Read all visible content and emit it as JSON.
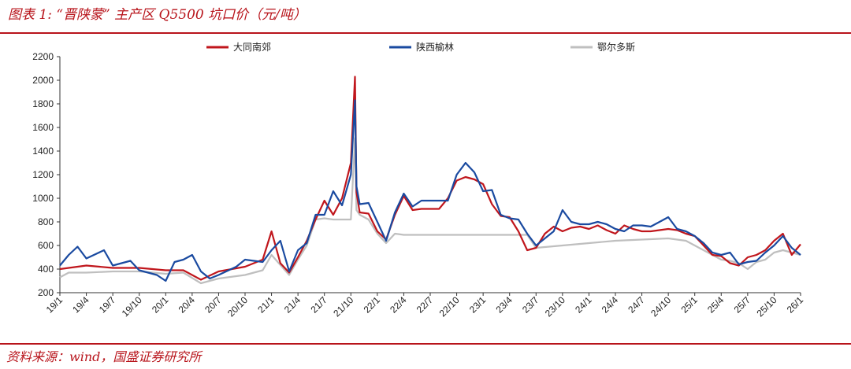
{
  "header": {
    "title": "图表 1: “晋陕蒙” 主产区 Q5500 坑口价（元/吨）"
  },
  "footer": {
    "source": "资料来源：wind，国盛证券研究所"
  },
  "chart_data": {
    "type": "line",
    "title": "“晋陕蒙” 主产区 Q5500 坑口价（元/吨）",
    "xlabel": "",
    "ylabel": "",
    "ylim": [
      200,
      2200
    ],
    "yticks": [
      200,
      400,
      600,
      800,
      1000,
      1200,
      1400,
      1600,
      1800,
      2000,
      2200
    ],
    "xlim": [
      "2019-01",
      "2026-01"
    ],
    "xticks": [
      "19/1",
      "19/4",
      "19/7",
      "19/10",
      "20/1",
      "20/4",
      "20/7",
      "20/10",
      "21/1",
      "21/4",
      "21/7",
      "21/10",
      "22/1",
      "22/4",
      "22/7",
      "22/10",
      "23/1",
      "23/4",
      "23/7",
      "23/10",
      "24/1",
      "24/4",
      "24/7",
      "24/10",
      "25/1",
      "25/4",
      "25/7",
      "25/10",
      "26/1"
    ],
    "grid": false,
    "legend_position": "top",
    "series": [
      {
        "name": "大同南郊",
        "color": "#c0161c",
        "x": [
          "2019-01",
          "2019-04",
          "2019-07",
          "2019-10",
          "2020-01",
          "2020-03",
          "2020-05",
          "2020-07",
          "2020-10",
          "2020-12",
          "2021-01",
          "2021-02",
          "2021-03",
          "2021-04",
          "2021-05",
          "2021-06",
          "2021-07",
          "2021-08",
          "2021-09",
          "2021-10",
          "2021-10-15",
          "2021-10-20",
          "2021-11",
          "2021-12",
          "2022-01",
          "2022-02",
          "2022-03",
          "2022-04",
          "2022-05",
          "2022-06",
          "2022-07",
          "2022-08",
          "2022-09",
          "2022-10",
          "2022-11",
          "2022-12",
          "2023-01",
          "2023-02",
          "2023-03",
          "2023-04",
          "2023-05",
          "2023-06",
          "2023-07",
          "2023-08",
          "2023-09",
          "2023-10",
          "2023-11",
          "2023-12",
          "2024-01",
          "2024-02",
          "2024-03",
          "2024-04",
          "2024-05",
          "2024-06",
          "2024-07",
          "2024-08",
          "2024-09",
          "2024-10",
          "2024-11",
          "2024-12",
          "2025-01",
          "2025-02",
          "2025-03",
          "2025-04",
          "2025-05",
          "2025-06",
          "2025-07",
          "2025-08",
          "2025-09",
          "2025-10",
          "2025-11",
          "2025-12",
          "2026-01"
        ],
        "y": [
          400,
          430,
          410,
          410,
          390,
          390,
          310,
          380,
          420,
          480,
          720,
          450,
          370,
          500,
          640,
          820,
          980,
          860,
          1000,
          1300,
          2030,
          1050,
          880,
          870,
          720,
          650,
          860,
          1020,
          900,
          910,
          910,
          910,
          1000,
          1150,
          1180,
          1160,
          1120,
          950,
          850,
          840,
          720,
          560,
          580,
          700,
          760,
          720,
          750,
          760,
          740,
          770,
          730,
          700,
          770,
          740,
          720,
          720,
          730,
          740,
          730,
          700,
          680,
          600,
          520,
          510,
          450,
          430,
          500,
          520,
          560,
          640,
          700,
          520,
          610
        ]
      },
      {
        "name": "陕西榆林",
        "color": "#1a4aa0",
        "x": [
          "2019-01",
          "2019-02",
          "2019-03",
          "2019-04",
          "2019-06",
          "2019-07",
          "2019-09",
          "2019-10",
          "2019-12",
          "2020-01",
          "2020-02",
          "2020-03",
          "2020-04",
          "2020-05",
          "2020-06",
          "2020-07",
          "2020-09",
          "2020-10",
          "2020-12",
          "2021-01",
          "2021-02",
          "2021-03",
          "2021-04",
          "2021-05",
          "2021-06",
          "2021-07",
          "2021-08",
          "2021-09",
          "2021-10",
          "2021-10-15",
          "2021-10-20",
          "2021-11",
          "2021-12",
          "2022-01",
          "2022-02",
          "2022-03",
          "2022-04",
          "2022-05",
          "2022-06",
          "2022-07",
          "2022-08",
          "2022-09",
          "2022-10",
          "2022-11",
          "2022-12",
          "2023-01",
          "2023-02",
          "2023-03",
          "2023-04",
          "2023-05",
          "2023-06",
          "2023-07",
          "2023-08",
          "2023-09",
          "2023-10",
          "2023-11",
          "2023-12",
          "2024-01",
          "2024-02",
          "2024-03",
          "2024-04",
          "2024-05",
          "2024-06",
          "2024-07",
          "2024-08",
          "2024-09",
          "2024-10",
          "2024-11",
          "2024-12",
          "2025-01",
          "2025-02",
          "2025-03",
          "2025-04",
          "2025-05",
          "2025-06",
          "2025-07",
          "2025-08",
          "2025-09",
          "2025-10",
          "2025-11",
          "2025-12",
          "2026-01"
        ],
        "y": [
          430,
          520,
          590,
          490,
          560,
          430,
          470,
          390,
          350,
          300,
          460,
          480,
          520,
          380,
          320,
          350,
          420,
          480,
          460,
          560,
          640,
          380,
          560,
          620,
          860,
          860,
          1060,
          940,
          1200,
          1830,
          1100,
          950,
          960,
          800,
          640,
          880,
          1040,
          930,
          980,
          980,
          980,
          980,
          1200,
          1300,
          1220,
          1060,
          1070,
          860,
          830,
          820,
          700,
          600,
          660,
          720,
          900,
          800,
          780,
          780,
          800,
          780,
          740,
          720,
          770,
          770,
          760,
          800,
          840,
          740,
          720,
          680,
          620,
          540,
          520,
          540,
          440,
          460,
          470,
          540,
          600,
          680,
          580,
          520
        ]
      },
      {
        "name": "鄂尔多斯",
        "color": "#bfbfbf",
        "x": [
          "2019-01",
          "2019-02",
          "2019-04",
          "2019-07",
          "2019-10",
          "2020-01",
          "2020-03",
          "2020-05",
          "2020-07",
          "2020-10",
          "2020-12",
          "2021-01",
          "2021-03",
          "2021-04",
          "2021-05",
          "2021-06",
          "2021-07",
          "2021-08",
          "2021-09",
          "2021-10",
          "2021-10-15",
          "2021-10-20",
          "2021-11",
          "2021-12",
          "2022-01",
          "2022-02",
          "2022-03",
          "2022-04",
          "2022-07",
          "2022-10",
          "2023-01",
          "2023-04",
          "2023-06",
          "2023-07",
          "2023-10",
          "2024-01",
          "2024-04",
          "2024-07",
          "2024-10",
          "2024-12",
          "2025-01",
          "2025-02",
          "2025-04",
          "2025-05",
          "2025-06",
          "2025-07",
          "2025-08",
          "2025-09",
          "2025-10",
          "2025-11",
          "2025-12",
          "2026-01"
        ],
        "y": [
          330,
          370,
          370,
          380,
          380,
          360,
          370,
          280,
          320,
          350,
          390,
          520,
          350,
          480,
          600,
          820,
          830,
          820,
          820,
          820,
          1510,
          900,
          860,
          820,
          700,
          620,
          700,
          690,
          690,
          690,
          690,
          690,
          690,
          580,
          600,
          620,
          640,
          650,
          660,
          640,
          600,
          560,
          480,
          470,
          450,
          400,
          460,
          480,
          540,
          560,
          540,
          520
        ]
      }
    ]
  }
}
